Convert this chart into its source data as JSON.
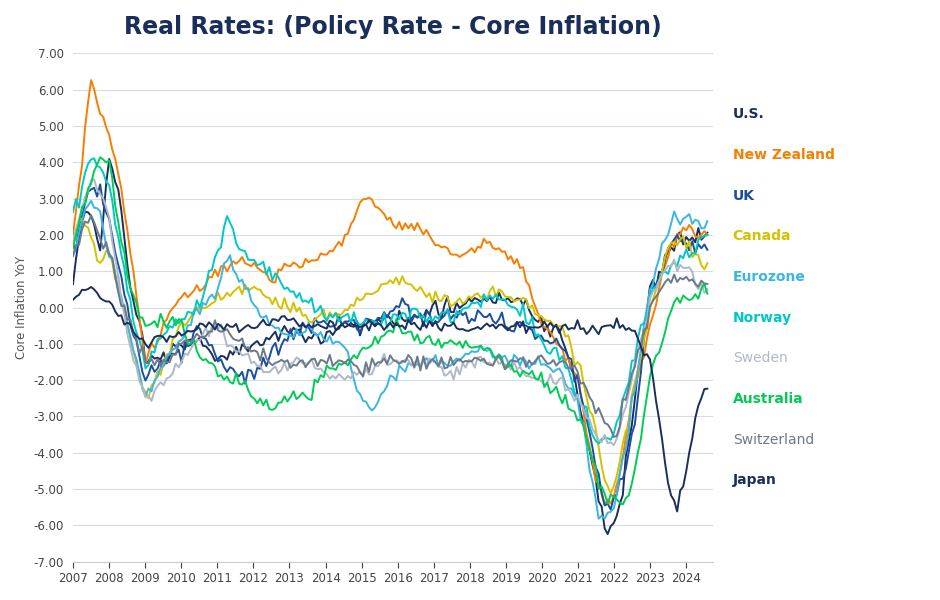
{
  "title": "Real Rates: (Policy Rate - Core Inflation)",
  "ylabel": "Core Inflation YoY",
  "background_color": "#ffffff",
  "grid_color": "#d5dce8",
  "title_color": "#1a2e5a",
  "title_fontsize": 17,
  "ylim": [
    -7.0,
    7.0
  ],
  "yticks": [
    -7.0,
    -6.0,
    -5.0,
    -4.0,
    -3.0,
    -2.0,
    -1.0,
    0.0,
    1.0,
    2.0,
    3.0,
    4.0,
    5.0,
    6.0,
    7.0
  ],
  "colors": {
    "U.S.": "#1b2f5e",
    "New Zealand": "#f77f00",
    "UK": "#1b4f9e",
    "Canada": "#d4c200",
    "Eurozone": "#3ab5e6",
    "Norway": "#00c8c8",
    "Sweden": "#b0b8c8",
    "Australia": "#00cc55",
    "Switzerland": "#6a7a8a",
    "Japan": "#1b2f5e"
  },
  "legend_bold": {
    "U.S.": true,
    "New Zealand": true,
    "UK": true,
    "Canada": true,
    "Eurozone": true,
    "Norway": true,
    "Sweden": false,
    "Australia": true,
    "Switzerland": false,
    "Japan": true
  },
  "legend_order": [
    "U.S.",
    "New Zealand",
    "UK",
    "Canada",
    "Eurozone",
    "Norway",
    "Sweden",
    "Australia",
    "Switzerland",
    "Japan"
  ]
}
